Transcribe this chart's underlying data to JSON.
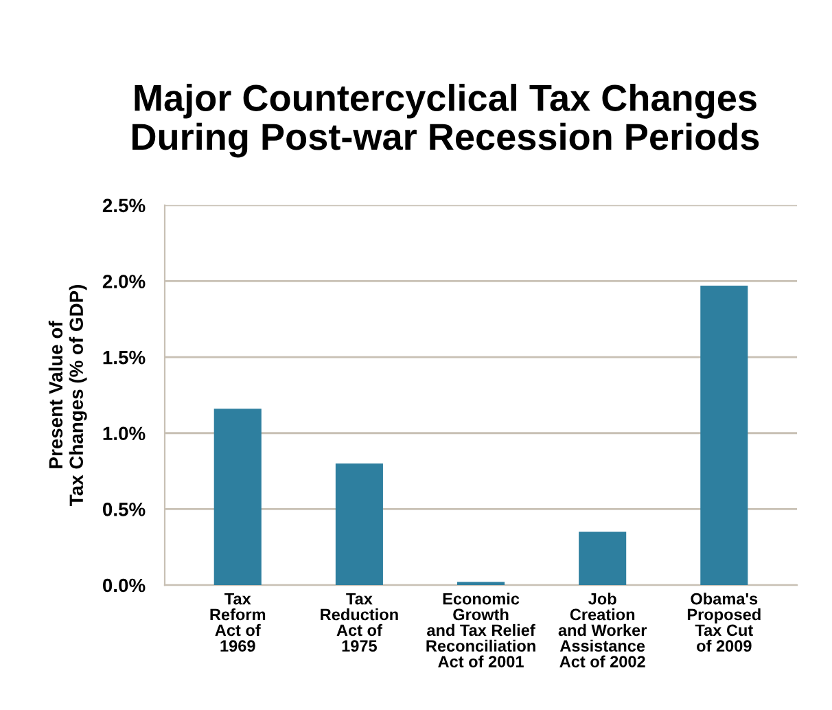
{
  "chart_data": {
    "type": "bar",
    "title": "Major Countercyclical Tax Changes\nDuring Post-war Recession Periods",
    "ylabel": "Present Value of\nTax Changes (% of GDP)",
    "categories": [
      "Tax\nReform\nAct of\n1969",
      "Tax\nReduction\nAct of\n1975",
      "Economic\nGrowth\nand Tax Relief\nReconciliation\nAct of 2001",
      "Job\nCreation\nand Worker\nAssistance\nAct of 2002",
      "Obama's\nProposed\nTax Cut\nof 2009"
    ],
    "values": [
      1.16,
      0.8,
      0.02,
      0.35,
      1.97
    ],
    "color": "#2e7f9f",
    "ylim": [
      0,
      2.5
    ],
    "yticks": [
      {
        "value": 0,
        "label": "0.0%"
      },
      {
        "value": 0.5,
        "label": "0.5%"
      },
      {
        "value": 1.0,
        "label": "1.0%"
      },
      {
        "value": 1.5,
        "label": "1.5%"
      },
      {
        "value": 2.0,
        "label": "2.0%"
      },
      {
        "value": 2.5,
        "label": "2.5%"
      }
    ],
    "grid": "y"
  }
}
